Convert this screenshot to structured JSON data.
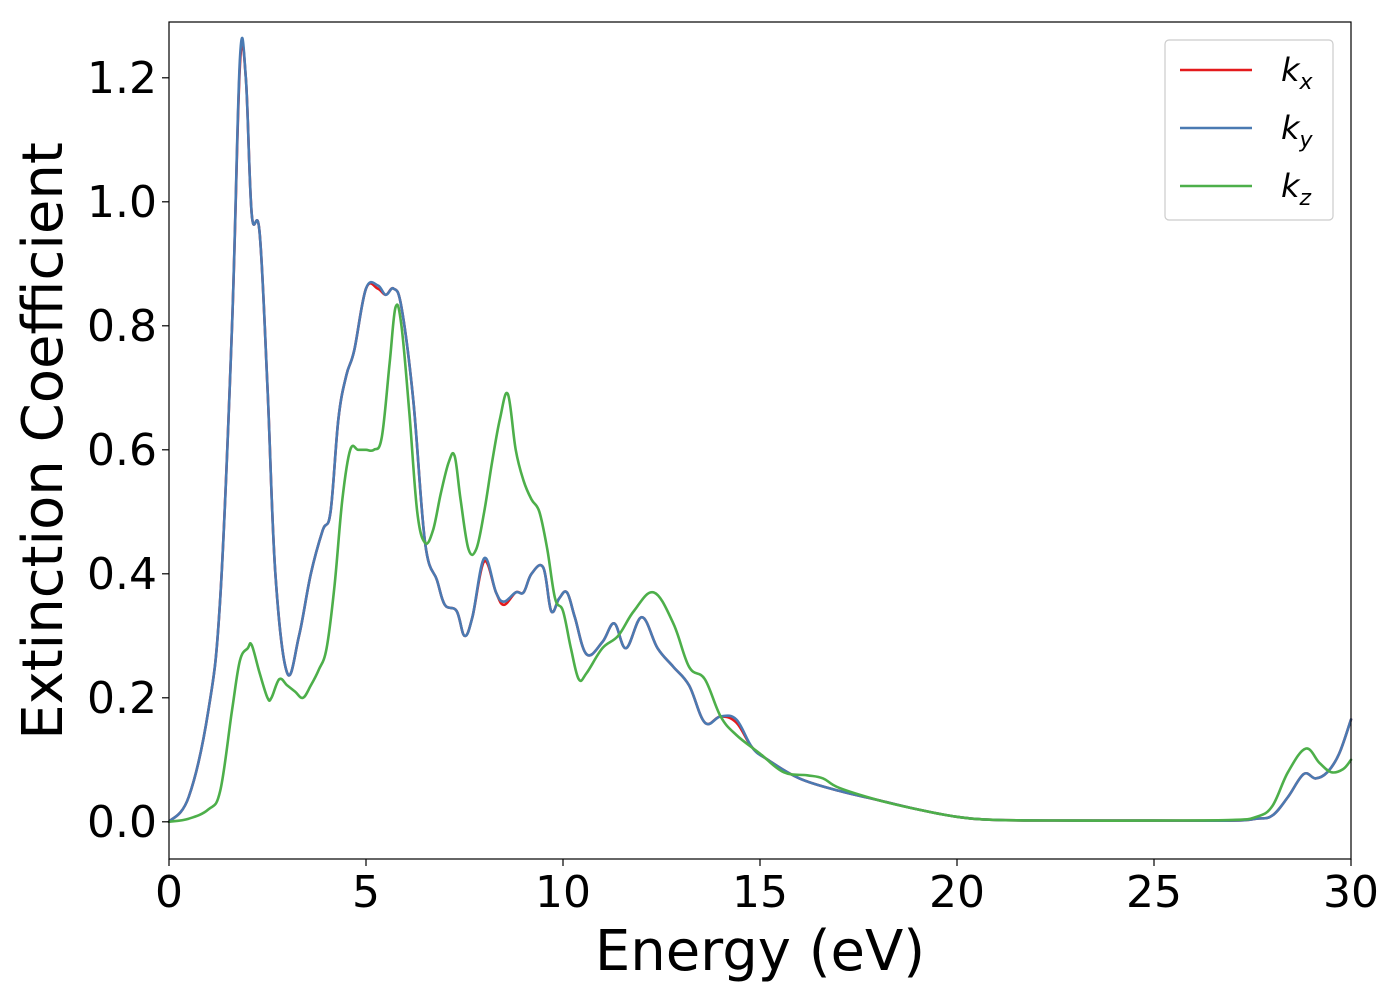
{
  "chart_data": {
    "type": "line",
    "xlabel": "Energy (eV)",
    "ylabel": "Extinction Coefficient",
    "xlim": [
      0,
      30
    ],
    "ylim": [
      -0.06,
      1.29
    ],
    "xticks": [
      0,
      5,
      10,
      15,
      20,
      25,
      30
    ],
    "xtick_labels": [
      "0",
      "5",
      "10",
      "15",
      "20",
      "25",
      "30"
    ],
    "yticks": [
      0.0,
      0.2,
      0.4,
      0.6,
      0.8,
      1.0,
      1.2
    ],
    "ytick_labels": [
      "0.0",
      "0.2",
      "0.4",
      "0.6",
      "0.8",
      "1.0",
      "1.2"
    ],
    "grid": false,
    "legend_position": "top-right",
    "series": [
      {
        "name": "k_x",
        "legend_base": "k",
        "legend_sub": "x",
        "color": "#e41a1c",
        "x": [
          0,
          0.5,
          1.0,
          1.3,
          1.6,
          1.8,
          1.95,
          2.1,
          2.3,
          2.5,
          2.7,
          3.0,
          3.3,
          3.6,
          3.9,
          4.1,
          4.3,
          4.5,
          4.7,
          5.0,
          5.3,
          5.5,
          5.7,
          5.9,
          6.2,
          6.5,
          6.8,
          7.0,
          7.3,
          7.5,
          7.7,
          8.0,
          8.3,
          8.5,
          8.8,
          9.0,
          9.2,
          9.5,
          9.7,
          9.9,
          10.1,
          10.3,
          10.6,
          11.0,
          11.3,
          11.6,
          12.0,
          12.4,
          12.8,
          13.2,
          13.6,
          14.0,
          14.4,
          14.8,
          15.2,
          16.0,
          17.0,
          18.0,
          19.0,
          20.0,
          21.0,
          23.0,
          25.0,
          27.0,
          27.6,
          28.0,
          28.4,
          28.8,
          29.1,
          29.4,
          29.7,
          30.0
        ],
        "y": [
          0.0,
          0.04,
          0.18,
          0.36,
          0.8,
          1.22,
          1.2,
          0.98,
          0.95,
          0.7,
          0.4,
          0.24,
          0.3,
          0.4,
          0.47,
          0.5,
          0.65,
          0.72,
          0.76,
          0.86,
          0.86,
          0.85,
          0.86,
          0.83,
          0.68,
          0.45,
          0.39,
          0.35,
          0.34,
          0.3,
          0.33,
          0.42,
          0.37,
          0.35,
          0.37,
          0.37,
          0.4,
          0.41,
          0.34,
          0.36,
          0.37,
          0.33,
          0.27,
          0.29,
          0.32,
          0.28,
          0.33,
          0.28,
          0.25,
          0.22,
          0.16,
          0.17,
          0.16,
          0.12,
          0.1,
          0.07,
          0.05,
          0.035,
          0.02,
          0.008,
          0.003,
          0.002,
          0.002,
          0.002,
          0.005,
          0.01,
          0.04,
          0.077,
          0.07,
          0.08,
          0.11,
          0.165
        ]
      },
      {
        "name": "k_y",
        "legend_base": "k",
        "legend_sub": "y",
        "color": "#4a7ab2",
        "x": [
          0,
          0.5,
          1.0,
          1.3,
          1.6,
          1.8,
          1.95,
          2.1,
          2.3,
          2.5,
          2.7,
          3.0,
          3.3,
          3.6,
          3.9,
          4.1,
          4.3,
          4.5,
          4.7,
          5.0,
          5.3,
          5.5,
          5.7,
          5.9,
          6.2,
          6.5,
          6.8,
          7.0,
          7.3,
          7.5,
          7.7,
          8.0,
          8.3,
          8.5,
          8.8,
          9.0,
          9.2,
          9.5,
          9.7,
          9.9,
          10.1,
          10.3,
          10.6,
          11.0,
          11.3,
          11.6,
          12.0,
          12.4,
          12.8,
          13.2,
          13.6,
          14.0,
          14.4,
          14.8,
          15.2,
          16.0,
          17.0,
          18.0,
          19.0,
          20.0,
          21.0,
          23.0,
          25.0,
          27.0,
          27.6,
          28.0,
          28.4,
          28.8,
          29.1,
          29.4,
          29.7,
          30.0
        ],
        "y": [
          0.0,
          0.04,
          0.18,
          0.36,
          0.8,
          1.23,
          1.2,
          0.98,
          0.95,
          0.7,
          0.4,
          0.24,
          0.3,
          0.4,
          0.47,
          0.5,
          0.65,
          0.72,
          0.76,
          0.86,
          0.865,
          0.85,
          0.86,
          0.83,
          0.68,
          0.45,
          0.39,
          0.35,
          0.34,
          0.3,
          0.33,
          0.425,
          0.37,
          0.355,
          0.37,
          0.37,
          0.4,
          0.41,
          0.34,
          0.36,
          0.37,
          0.33,
          0.27,
          0.29,
          0.32,
          0.28,
          0.33,
          0.28,
          0.25,
          0.22,
          0.16,
          0.17,
          0.165,
          0.12,
          0.1,
          0.07,
          0.05,
          0.035,
          0.02,
          0.008,
          0.003,
          0.002,
          0.002,
          0.002,
          0.005,
          0.01,
          0.04,
          0.077,
          0.07,
          0.08,
          0.11,
          0.165
        ]
      },
      {
        "name": "k_z",
        "legend_base": "k",
        "legend_sub": "z",
        "color": "#4daf4a",
        "x": [
          0,
          0.5,
          1.0,
          1.3,
          1.6,
          1.8,
          2.0,
          2.1,
          2.3,
          2.5,
          2.6,
          2.8,
          3.0,
          3.2,
          3.4,
          3.6,
          3.8,
          4.0,
          4.2,
          4.4,
          4.6,
          4.8,
          5.0,
          5.2,
          5.4,
          5.6,
          5.75,
          5.9,
          6.1,
          6.3,
          6.5,
          6.7,
          6.9,
          7.1,
          7.25,
          7.4,
          7.6,
          7.8,
          8.0,
          8.2,
          8.4,
          8.6,
          8.8,
          9.0,
          9.2,
          9.4,
          9.6,
          9.8,
          10.0,
          10.2,
          10.4,
          10.6,
          11.0,
          11.4,
          11.8,
          12.3,
          12.8,
          13.2,
          13.6,
          14.0,
          14.4,
          15.0,
          15.6,
          16.2,
          16.6,
          17.0,
          18.0,
          19.0,
          20.0,
          21.0,
          23.0,
          25.0,
          27.0,
          27.6,
          28.0,
          28.4,
          28.85,
          29.2,
          29.5,
          29.8,
          30.0
        ],
        "y": [
          0.0,
          0.005,
          0.02,
          0.05,
          0.18,
          0.26,
          0.28,
          0.285,
          0.24,
          0.2,
          0.2,
          0.23,
          0.22,
          0.21,
          0.2,
          0.22,
          0.245,
          0.28,
          0.38,
          0.52,
          0.6,
          0.6,
          0.6,
          0.6,
          0.62,
          0.74,
          0.83,
          0.8,
          0.66,
          0.5,
          0.45,
          0.47,
          0.53,
          0.58,
          0.59,
          0.52,
          0.44,
          0.44,
          0.5,
          0.58,
          0.65,
          0.69,
          0.6,
          0.55,
          0.52,
          0.5,
          0.44,
          0.36,
          0.34,
          0.28,
          0.23,
          0.24,
          0.28,
          0.3,
          0.34,
          0.37,
          0.32,
          0.25,
          0.23,
          0.17,
          0.14,
          0.11,
          0.08,
          0.075,
          0.07,
          0.055,
          0.035,
          0.02,
          0.008,
          0.003,
          0.002,
          0.002,
          0.003,
          0.008,
          0.025,
          0.08,
          0.118,
          0.095,
          0.08,
          0.085,
          0.1
        ]
      }
    ]
  }
}
